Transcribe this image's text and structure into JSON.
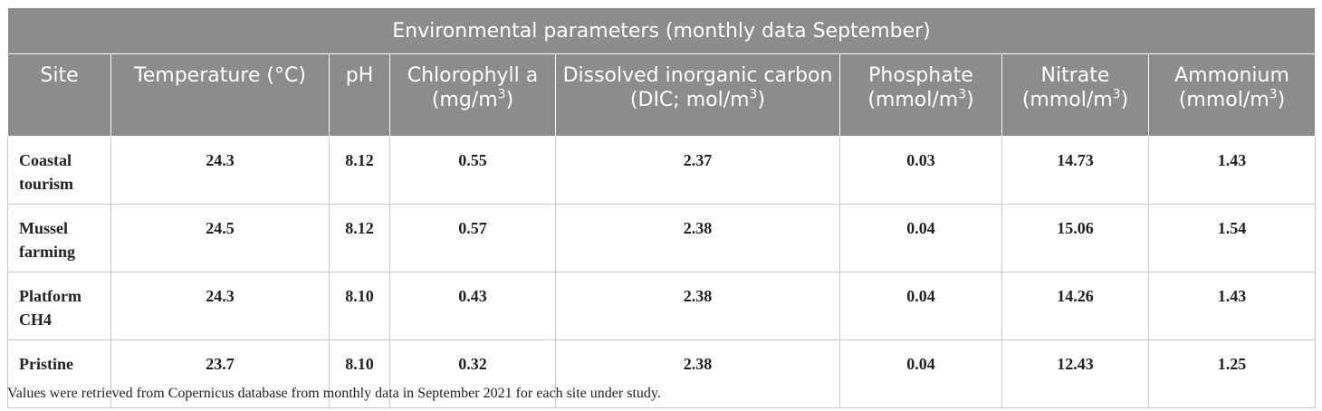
{
  "table": {
    "title": "Environmental parameters (monthly data September)",
    "headers": [
      {
        "text": "Site",
        "sup": ""
      },
      {
        "text": "Temperature (°C)",
        "sup": ""
      },
      {
        "text": "pH",
        "sup": ""
      },
      {
        "text": "Chlorophyll a (mg/m",
        "sup": "3",
        "after": ")"
      },
      {
        "text": "Dissolved inorganic carbon (DIC; mol/m",
        "sup": "3",
        "after": ")"
      },
      {
        "text": "Phosphate (mmol/m",
        "sup": "3",
        "after": ")"
      },
      {
        "text": "Nitrate (mmol/m",
        "sup": "3",
        "after": ")"
      },
      {
        "text": "Ammonium (mmol/m",
        "sup": "3",
        "after": ")"
      }
    ],
    "rows": [
      {
        "site": "Coastal tourism",
        "temperature": "24.3",
        "ph": "8.12",
        "chlorophyll": "0.55",
        "dic": "2.37",
        "phosphate": "0.03",
        "nitrate": "14.73",
        "ammonium": "1.43"
      },
      {
        "site": "Mussel farming",
        "temperature": "24.5",
        "ph": "8.12",
        "chlorophyll": "0.57",
        "dic": "2.38",
        "phosphate": "0.04",
        "nitrate": "15.06",
        "ammonium": "1.54"
      },
      {
        "site": "Platform CH4",
        "temperature": "24.3",
        "ph": "8.10",
        "chlorophyll": "0.43",
        "dic": "2.38",
        "phosphate": "0.04",
        "nitrate": "14.26",
        "ammonium": "1.43"
      },
      {
        "site": "Pristine",
        "temperature": "23.7",
        "ph": "8.10",
        "chlorophyll": "0.32",
        "dic": "2.38",
        "phosphate": "0.04",
        "nitrate": "12.43",
        "ammonium": "1.25"
      }
    ],
    "footnote": "Values were retrieved from Copernicus database from monthly data in September 2021 for each site under study."
  },
  "colors": {
    "header_bg": "#8c8c8c",
    "header_text": "#ffffff",
    "border": "#c8c8c8"
  }
}
